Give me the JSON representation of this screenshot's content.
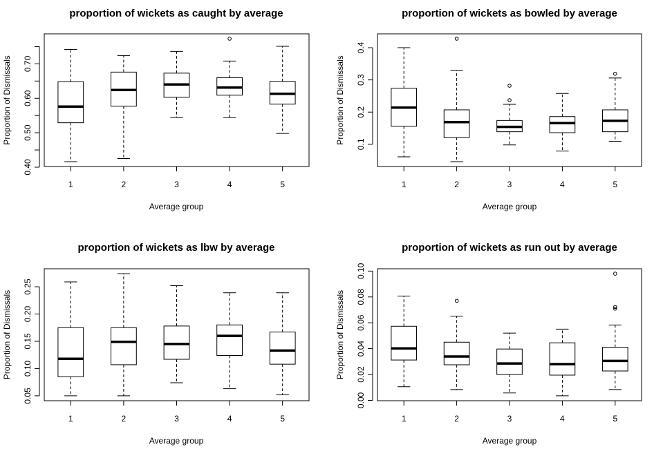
{
  "chart_data": [
    {
      "type": "boxplot",
      "title": "proportion of wickets as caught by average",
      "xlabel": "Average group",
      "ylabel": "Proportion of Dismissals",
      "categories": [
        "1",
        "2",
        "3",
        "4",
        "5"
      ],
      "ylim": [
        0.402,
        0.787
      ],
      "yticks": [
        0.4,
        0.45,
        0.5,
        0.55,
        0.6,
        0.65,
        0.7,
        0.75
      ],
      "ytick_labels": [
        "0.40",
        "",
        "0.50",
        "",
        "0.60",
        "",
        "0.70",
        ""
      ],
      "boxes": [
        {
          "whisker_low": 0.416,
          "q1": 0.529,
          "median": 0.576,
          "q3": 0.648,
          "whisker_high": 0.742,
          "outliers": []
        },
        {
          "whisker_low": 0.425,
          "q1": 0.577,
          "median": 0.624,
          "q3": 0.676,
          "whisker_high": 0.724,
          "outliers": []
        },
        {
          "whisker_low": 0.544,
          "q1": 0.603,
          "median": 0.64,
          "q3": 0.673,
          "whisker_high": 0.736,
          "outliers": []
        },
        {
          "whisker_low": 0.544,
          "q1": 0.609,
          "median": 0.631,
          "q3": 0.66,
          "whisker_high": 0.708,
          "outliers": [
            0.773
          ]
        },
        {
          "whisker_low": 0.498,
          "q1": 0.583,
          "median": 0.613,
          "q3": 0.649,
          "whisker_high": 0.751,
          "outliers": []
        }
      ]
    },
    {
      "type": "boxplot",
      "title": "proportion of wickets as bowled by average",
      "xlabel": "Average group",
      "ylabel": "Proportion of Dismissals",
      "categories": [
        "1",
        "2",
        "3",
        "4",
        "5"
      ],
      "ylim": [
        0.031,
        0.443
      ],
      "yticks": [
        0.1,
        0.2,
        0.3,
        0.4
      ],
      "ytick_labels": [
        "0.1",
        "0.2",
        "0.3",
        "0.4"
      ],
      "boxes": [
        {
          "whisker_low": 0.061,
          "q1": 0.156,
          "median": 0.214,
          "q3": 0.274,
          "whisker_high": 0.4,
          "outliers": []
        },
        {
          "whisker_low": 0.046,
          "q1": 0.121,
          "median": 0.169,
          "q3": 0.207,
          "whisker_high": 0.329,
          "outliers": [
            0.428
          ]
        },
        {
          "whisker_low": 0.098,
          "q1": 0.139,
          "median": 0.154,
          "q3": 0.174,
          "whisker_high": 0.224,
          "outliers": [
            0.237,
            0.282
          ]
        },
        {
          "whisker_low": 0.079,
          "q1": 0.136,
          "median": 0.166,
          "q3": 0.186,
          "whisker_high": 0.258,
          "outliers": []
        },
        {
          "whisker_low": 0.109,
          "q1": 0.139,
          "median": 0.173,
          "q3": 0.207,
          "whisker_high": 0.306,
          "outliers": [
            0.319
          ]
        }
      ]
    },
    {
      "type": "boxplot",
      "title": "proportion of wickets as lbw by average",
      "xlabel": "Average group",
      "ylabel": "Proportion of Dismissals",
      "categories": [
        "1",
        "2",
        "3",
        "4",
        "5"
      ],
      "ylim": [
        0.041,
        0.283
      ],
      "yticks": [
        0.05,
        0.1,
        0.15,
        0.2,
        0.25
      ],
      "ytick_labels": [
        "0.05",
        "0.10",
        "0.15",
        "0.20",
        "0.25"
      ],
      "boxes": [
        {
          "whisker_low": 0.05,
          "q1": 0.085,
          "median": 0.118,
          "q3": 0.175,
          "whisker_high": 0.259,
          "outliers": []
        },
        {
          "whisker_low": 0.05,
          "q1": 0.107,
          "median": 0.149,
          "q3": 0.175,
          "whisker_high": 0.274,
          "outliers": []
        },
        {
          "whisker_low": 0.074,
          "q1": 0.117,
          "median": 0.145,
          "q3": 0.178,
          "whisker_high": 0.252,
          "outliers": []
        },
        {
          "whisker_low": 0.063,
          "q1": 0.124,
          "median": 0.16,
          "q3": 0.18,
          "whisker_high": 0.239,
          "outliers": []
        },
        {
          "whisker_low": 0.052,
          "q1": 0.108,
          "median": 0.133,
          "q3": 0.167,
          "whisker_high": 0.239,
          "outliers": []
        }
      ]
    },
    {
      "type": "boxplot",
      "title": "proportion of wickets as run out by average",
      "xlabel": "Average group",
      "ylabel": "Proportion of Dismissals",
      "categories": [
        "1",
        "2",
        "3",
        "4",
        "5"
      ],
      "ylim": [
        -0.0003,
        0.1018
      ],
      "yticks": [
        0.0,
        0.02,
        0.04,
        0.06,
        0.08,
        0.1
      ],
      "ytick_labels": [
        "0.00",
        "0.02",
        "0.04",
        "0.06",
        "0.08",
        "0.10"
      ],
      "boxes": [
        {
          "whisker_low": 0.0105,
          "q1": 0.0312,
          "median": 0.0402,
          "q3": 0.0573,
          "whisker_high": 0.0807,
          "outliers": []
        },
        {
          "whisker_low": 0.0083,
          "q1": 0.0275,
          "median": 0.0339,
          "q3": 0.045,
          "whisker_high": 0.0652,
          "outliers": [
            0.077
          ]
        },
        {
          "whisker_low": 0.0057,
          "q1": 0.02,
          "median": 0.0285,
          "q3": 0.0397,
          "whisker_high": 0.052,
          "outliers": []
        },
        {
          "whisker_low": 0.0035,
          "q1": 0.0195,
          "median": 0.028,
          "q3": 0.0445,
          "whisker_high": 0.0551,
          "outliers": []
        },
        {
          "whisker_low": 0.0083,
          "q1": 0.0227,
          "median": 0.0305,
          "q3": 0.0411,
          "whisker_high": 0.0583,
          "outliers": [
            0.098,
            0.0722,
            0.0709
          ]
        }
      ]
    }
  ]
}
